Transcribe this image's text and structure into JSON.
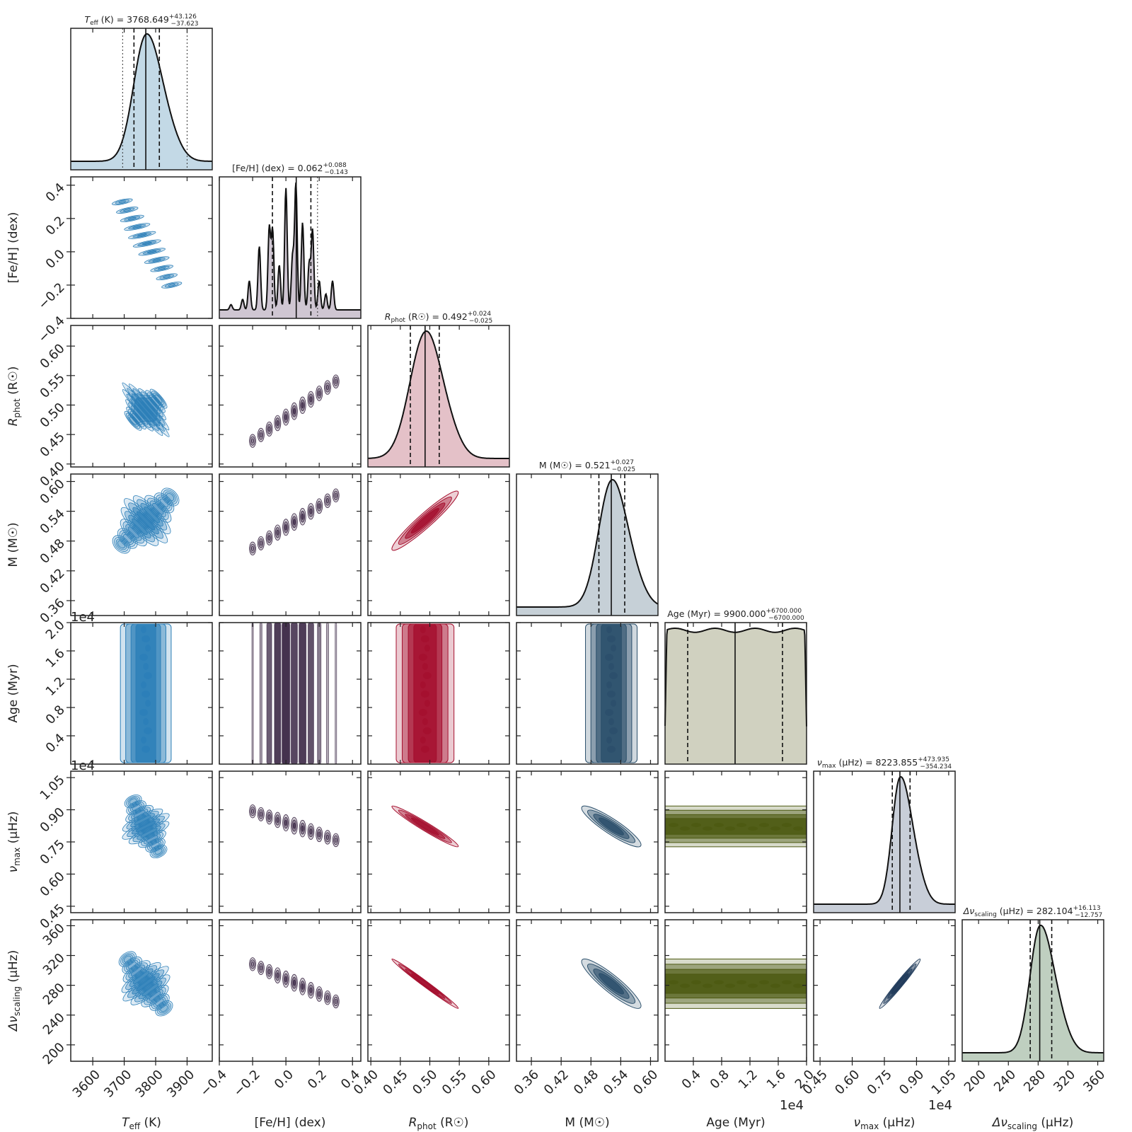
{
  "chart_data": {
    "type": "corner",
    "parameters": [
      {
        "key": "teff",
        "axis_label": "T_eff (K)",
        "title": "T_eff (K) = 3768.649 +43.126 −37.623",
        "median": 3768.649,
        "err_plus": 43.126,
        "err_minus": 37.623,
        "quantiles": [
          3731.026,
          3768.649,
          3811.775
        ],
        "outer_bounds": [
          3695,
          3900
        ],
        "range": [
          3530,
          3980
        ],
        "ticks": [
          3600,
          3700,
          3800,
          3900
        ],
        "tick_labels": [
          "3600",
          "3700",
          "3800",
          "3900"
        ],
        "offset_label": "",
        "color": "#2c7fb8",
        "fill": "#c3d9e6"
      },
      {
        "key": "feh",
        "axis_label": "[Fe/H] (dex)",
        "title": "[Fe/H] (dex) = 0.062 +0.088 −0.143",
        "median": 0.062,
        "err_plus": 0.088,
        "err_minus": 0.143,
        "quantiles": [
          -0.081,
          0.062,
          0.15
        ],
        "outer_bounds": [
          0.19
        ],
        "range": [
          -0.4,
          0.45
        ],
        "ticks": [
          -0.4,
          -0.2,
          0.0,
          0.2,
          0.4
        ],
        "tick_labels": [
          "−0.4",
          "−0.2",
          "0.0",
          "0.2",
          "0.4"
        ],
        "offset_label": "",
        "color": "#3b2745",
        "fill": "#cfc6d2"
      },
      {
        "key": "rphot",
        "axis_label": "R_phot (R☉)",
        "title": "R_phot (R☉) = 0.492 +0.024 −0.025",
        "median": 0.492,
        "err_plus": 0.024,
        "err_minus": 0.025,
        "quantiles": [
          0.467,
          0.492,
          0.516
        ],
        "outer_bounds": [],
        "range": [
          0.395,
          0.635
        ],
        "ticks": [
          0.4,
          0.45,
          0.5,
          0.55,
          0.6
        ],
        "tick_labels": [
          "0.40",
          "0.45",
          "0.50",
          "0.55",
          "0.60"
        ],
        "offset_label": "",
        "color": "#a50f2e",
        "fill": "#e4c1c8"
      },
      {
        "key": "mass",
        "axis_label": "M (M☉)",
        "title": "M (M☉) = 0.521 +0.027 −0.025",
        "median": 0.521,
        "err_plus": 0.027,
        "err_minus": 0.025,
        "quantiles": [
          0.496,
          0.521,
          0.548
        ],
        "outer_bounds": [],
        "range": [
          0.33,
          0.615
        ],
        "ticks": [
          0.36,
          0.42,
          0.48,
          0.54,
          0.6
        ],
        "tick_labels": [
          "0.36",
          "0.42",
          "0.48",
          "0.54",
          "0.60"
        ],
        "offset_label": "",
        "color": "#2b4f6b",
        "fill": "#c6d0d7"
      },
      {
        "key": "age",
        "axis_label": "Age (Myr)",
        "title": "Age (Myr) = 9900.000 +6700.000 −6700.000",
        "median": 9900,
        "err_plus": 6700,
        "err_minus": 6700,
        "quantiles": [
          3200,
          9900,
          16600
        ],
        "outer_bounds": [],
        "range": [
          0,
          20000
        ],
        "ticks": [
          4000,
          8000,
          12000,
          16000,
          20000
        ],
        "tick_labels": [
          "0.4",
          "0.8",
          "1.2",
          "1.6",
          "2.0"
        ],
        "offset_label": "1e4",
        "color": "#4d5a12",
        "fill": "#d0d1c0"
      },
      {
        "key": "numax",
        "axis_label": "ν_max (μHz)",
        "title": "ν_max (μHz) = 8223.855 +473.935 −354.234",
        "median": 8223.855,
        "err_plus": 473.935,
        "err_minus": 354.234,
        "quantiles": [
          7869.621,
          8223.855,
          8697.79
        ],
        "outer_bounds": [],
        "range": [
          4200,
          10800
        ],
        "ticks": [
          4500,
          6000,
          7500,
          9000,
          10500
        ],
        "tick_labels": [
          "0.45",
          "0.60",
          "0.75",
          "0.90",
          "1.05"
        ],
        "offset_label": "1e4",
        "color": "#1f3a5a",
        "fill": "#c8ced8"
      },
      {
        "key": "dnu",
        "axis_label": "Δν_scaling (μHz)",
        "title": "Δν_scaling (μHz) = 282.104 +16.113 −12.757",
        "median": 282.104,
        "err_plus": 16.113,
        "err_minus": 12.757,
        "quantiles": [
          269.347,
          282.104,
          298.217
        ],
        "outer_bounds": [],
        "range": [
          178,
          368
        ],
        "ticks": [
          200,
          240,
          280,
          320,
          360
        ],
        "tick_labels": [
          "200",
          "240",
          "280",
          "320",
          "360"
        ],
        "offset_label": "",
        "color": "#49664d",
        "fill": "#bfcfc0"
      }
    ],
    "correlations": [
      [
        1.0,
        -0.9,
        -0.9,
        -0.55,
        0.0,
        0.5,
        0.55
      ],
      [
        -0.9,
        1.0,
        0.95,
        0.95,
        0.0,
        -0.75,
        -0.8
      ],
      [
        -0.9,
        0.95,
        1.0,
        0.95,
        0.0,
        -0.97,
        -0.99
      ],
      [
        -0.55,
        0.95,
        0.95,
        1.0,
        0.0,
        -0.9,
        -0.9
      ],
      [
        0.0,
        0.0,
        0.0,
        0.0,
        1.0,
        0.0,
        0.0
      ],
      [
        0.5,
        -0.75,
        -0.97,
        -0.9,
        0.0,
        1.0,
        0.98
      ],
      [
        0.55,
        -0.8,
        -0.99,
        -0.9,
        0.0,
        0.98,
        1.0
      ]
    ]
  }
}
